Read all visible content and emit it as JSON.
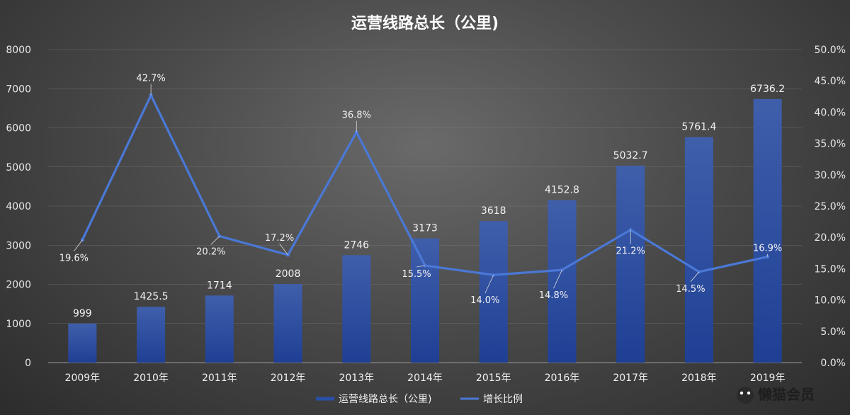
{
  "chart_data": {
    "type": "bar",
    "title": "运营线路总长（公里)",
    "categories": [
      "2009年",
      "2010年",
      "2011年",
      "2012年",
      "2013年",
      "2014年",
      "2015年",
      "2016年",
      "2017年",
      "2018年",
      "2019年"
    ],
    "series": [
      {
        "name": "运营线路总长（公里)",
        "type": "bar",
        "axis": "left",
        "values": [
          999,
          1425.5,
          1714,
          2008,
          2746,
          3173,
          3618,
          4152.8,
          5032.7,
          5761.4,
          6736.2
        ],
        "labels": [
          "999",
          "1425.5",
          "1714",
          "2008",
          "2746",
          "3173",
          "3618",
          "4152.8",
          "5032.7",
          "5761.4",
          "6736.2"
        ]
      },
      {
        "name": "增长比例",
        "type": "line",
        "axis": "right",
        "values": [
          19.6,
          42.7,
          20.2,
          17.2,
          36.8,
          15.5,
          14.0,
          14.8,
          21.2,
          14.5,
          16.9
        ],
        "labels": [
          "19.6%",
          "42.7%",
          "20.2%",
          "17.2%",
          "36.8%",
          "15.5%",
          "14.0%",
          "14.8%",
          "21.2%",
          "14.5%",
          "16.9%"
        ]
      }
    ],
    "y_left": {
      "min": 0,
      "max": 8000,
      "ticks": [
        "0",
        "1000",
        "2000",
        "3000",
        "4000",
        "5000",
        "6000",
        "7000",
        "8000"
      ]
    },
    "y_right": {
      "min": 0,
      "max": 50,
      "ticks": [
        "0.0%",
        "5.0%",
        "10.0%",
        "15.0%",
        "20.0%",
        "25.0%",
        "30.0%",
        "35.0%",
        "40.0%",
        "45.0%",
        "50.0%"
      ]
    },
    "grid": true,
    "legend_position": "bottom-center",
    "colors": {
      "bar": "#2a4fa6",
      "line": "#4a78d6",
      "background": "#3f3f3f"
    }
  },
  "logo": {
    "text": "懒猫会员"
  }
}
